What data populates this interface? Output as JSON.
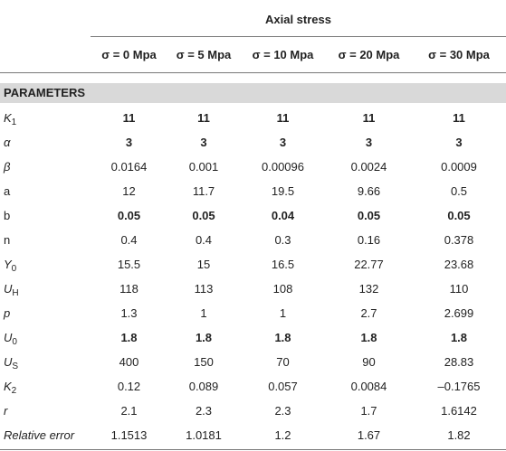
{
  "table": {
    "group_header": "Axial stress",
    "columns": [
      "σ = 0 Mpa",
      "σ = 5 Mpa",
      "σ = 10 Mpa",
      "σ = 20 Mpa",
      "σ = 30 Mpa"
    ],
    "section": "PARAMETERS",
    "rows": [
      {
        "symbol": "K",
        "subscript": "1",
        "italic": true,
        "bold": true,
        "values": [
          "11",
          "11",
          "11",
          "11",
          "11"
        ]
      },
      {
        "symbol": "α",
        "italic": true,
        "bold": true,
        "values": [
          "3",
          "3",
          "3",
          "3",
          "3"
        ]
      },
      {
        "symbol": "β",
        "italic": true,
        "values": [
          "0.0164",
          "0.001",
          "0.00096",
          "0.0024",
          "0.0009"
        ]
      },
      {
        "symbol": "a",
        "values": [
          "12",
          "11.7",
          "19.5",
          "9.66",
          "0.5"
        ]
      },
      {
        "symbol": "b",
        "bold": true,
        "values": [
          "0.05",
          "0.05",
          "0.04",
          "0.05",
          "0.05"
        ]
      },
      {
        "symbol": "n",
        "values": [
          "0.4",
          "0.4",
          "0.3",
          "0.16",
          "0.378"
        ]
      },
      {
        "symbol": "Y",
        "subscript": "0",
        "italic": true,
        "values": [
          "15.5",
          "15",
          "16.5",
          "22.77",
          "23.68"
        ]
      },
      {
        "symbol": "U",
        "subscript": "H",
        "italic": true,
        "values": [
          "118",
          "113",
          "108",
          "132",
          "110"
        ]
      },
      {
        "symbol": "p",
        "italic": true,
        "values": [
          "1.3",
          "1",
          "1",
          "2.7",
          "2.699"
        ]
      },
      {
        "symbol": "U",
        "subscript": "0",
        "italic": true,
        "bold": true,
        "values": [
          "1.8",
          "1.8",
          "1.8",
          "1.8",
          "1.8"
        ]
      },
      {
        "symbol": "U",
        "subscript": "S",
        "italic": true,
        "values": [
          "400",
          "150",
          "70",
          "90",
          "28.83"
        ]
      },
      {
        "symbol": "K",
        "subscript": "2",
        "italic": true,
        "values": [
          "0.12",
          "0.089",
          "0.057",
          "0.0084",
          "–0.1765"
        ]
      },
      {
        "symbol": "r",
        "italic": true,
        "values": [
          "2.1",
          "2.3",
          "2.3",
          "1.7",
          "1.6142"
        ]
      },
      {
        "symbol": "Relative error",
        "italic": true,
        "values": [
          "1.1513",
          "1.0181",
          "1.2",
          "1.67",
          "1.82"
        ]
      }
    ]
  }
}
